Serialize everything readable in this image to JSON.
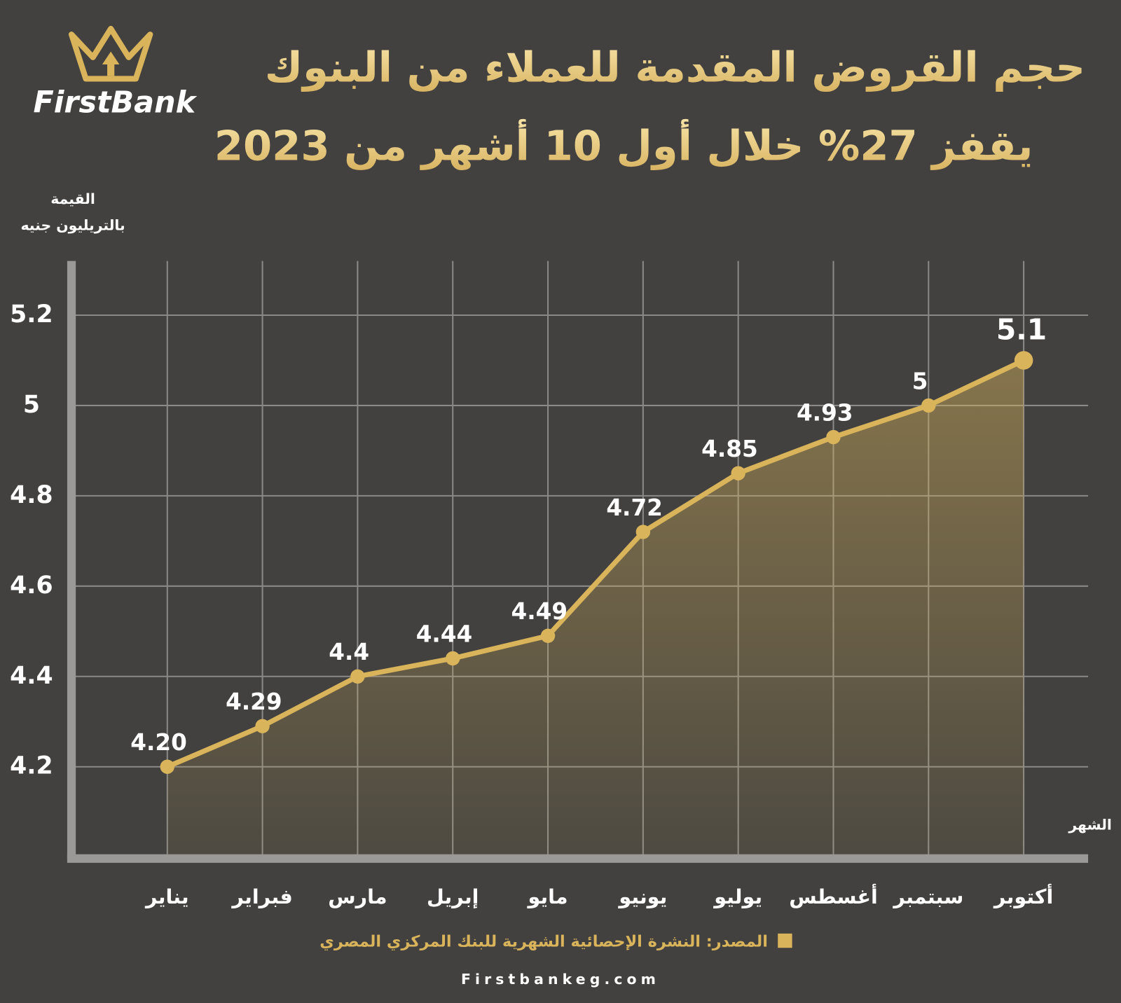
{
  "brand": "FirstBank",
  "website": "Firstbankeg.com",
  "source": "المصدر: النشرة الإحصائية الشهرية للبنك المركزي المصري",
  "chart_data": {
    "type": "area",
    "title": [
      "حجم القروض المقدمة للعملاء من البنوك",
      "يقفز 27% خلال أول 10 أشهر من 2023"
    ],
    "y_label": [
      "القيمة",
      "بالتريليون جنيه"
    ],
    "x_label": "الشهر",
    "categories": [
      "يناير",
      "فبراير",
      "مارس",
      "إبريل",
      "مايو",
      "يونيو",
      "يوليو",
      "أغسطس",
      "سبتمبر",
      "أكتوبر"
    ],
    "values": [
      4.2,
      4.29,
      4.4,
      4.44,
      4.49,
      4.72,
      4.85,
      4.93,
      5,
      5.1
    ],
    "value_labels": [
      "4.20",
      "4.29",
      "4.4",
      "4.44",
      "4.49",
      "4.72",
      "4.85",
      "4.93",
      "5",
      "5.1"
    ],
    "color": "#d9b45a",
    "ylim": [
      4.0,
      5.32
    ],
    "yticks": [
      4.2,
      4.4,
      4.6,
      4.8,
      5,
      5.2
    ],
    "grid": true
  }
}
